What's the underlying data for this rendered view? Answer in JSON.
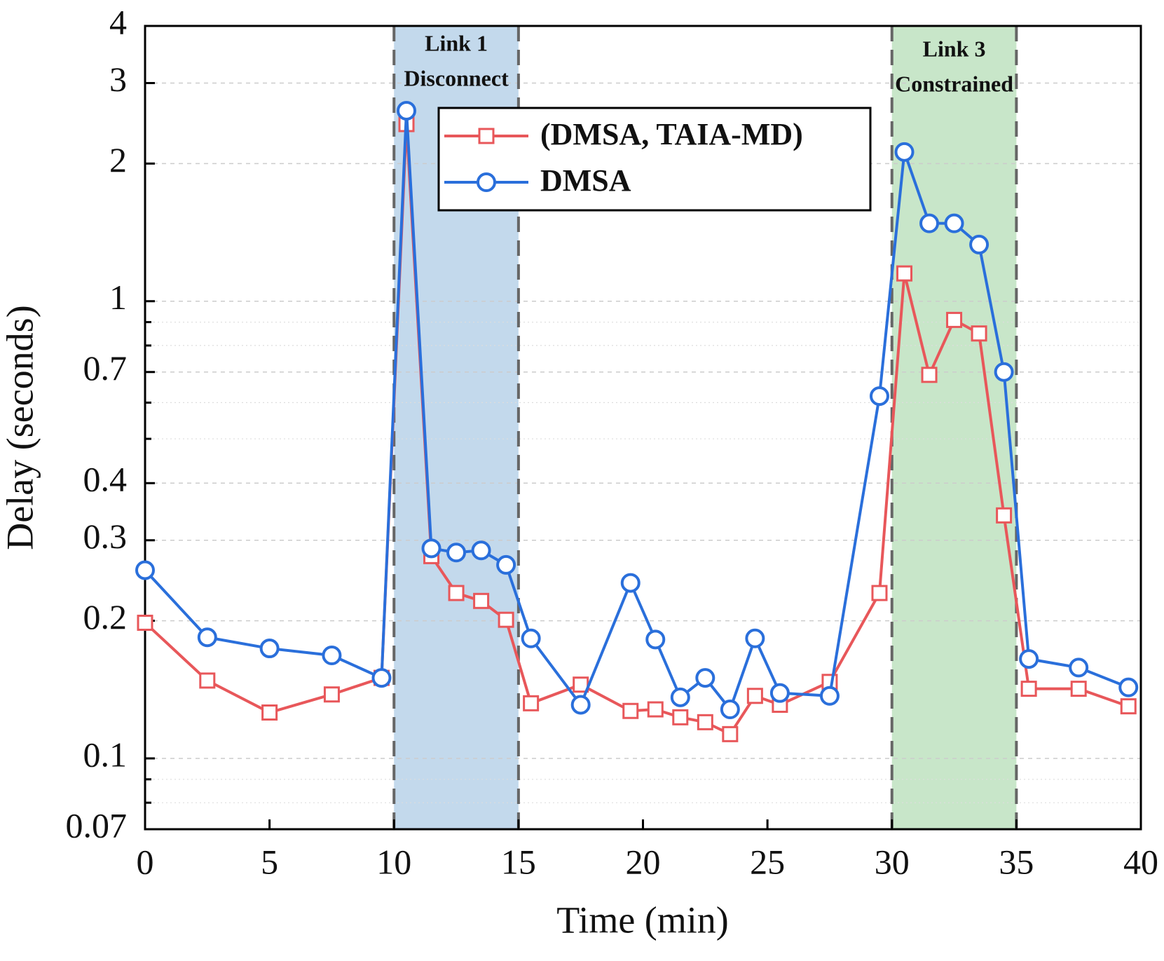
{
  "chart_data": {
    "type": "line",
    "xlabel": "Time (min)",
    "ylabel": "Delay (seconds)",
    "xlim": [
      0,
      40
    ],
    "xticks": [
      0,
      5,
      10,
      15,
      20,
      25,
      30,
      35,
      40
    ],
    "ylim": [
      0.07,
      4
    ],
    "yscale": "log",
    "yticks": [
      0.07,
      0.1,
      0.2,
      0.3,
      0.4,
      0.7,
      1,
      2,
      3,
      4
    ],
    "yminorticks": [
      0.08,
      0.09,
      0.5,
      0.6,
      0.8,
      0.9
    ],
    "grid": true,
    "legend": "upper center",
    "regions": [
      {
        "x": [
          10,
          15
        ],
        "color": "#c3d9ec",
        "label": [
          "Link 1",
          "Disconnect"
        ]
      },
      {
        "x": [
          30,
          35
        ],
        "color": "#c8e6c9",
        "label": [
          "Link 3",
          "Constrained"
        ]
      }
    ],
    "x": [
      0,
      2.5,
      5,
      7.5,
      9.5,
      10.5,
      11.5,
      12.5,
      13.5,
      14.5,
      15.5,
      17.5,
      19.5,
      20.5,
      21.5,
      22.5,
      23.5,
      24.5,
      25.5,
      27.5,
      29.5,
      30.5,
      31.5,
      32.5,
      33.5,
      34.5,
      35.5,
      37.5,
      39.5
    ],
    "series": [
      {
        "name": "(DMSA, TAIA-MD)",
        "color": "#e8575a",
        "marker": "square",
        "values": [
          0.198,
          0.148,
          0.126,
          0.138,
          0.15,
          2.44,
          0.277,
          0.23,
          0.221,
          0.201,
          0.132,
          0.145,
          0.127,
          0.128,
          0.123,
          0.12,
          0.113,
          0.137,
          0.131,
          0.147,
          0.23,
          1.15,
          0.69,
          0.91,
          0.85,
          0.34,
          0.142,
          0.142,
          0.13
        ]
      },
      {
        "name": "DMSA",
        "color": "#2a6fdb",
        "marker": "circle",
        "values": [
          0.258,
          0.184,
          0.174,
          0.168,
          0.15,
          2.61,
          0.288,
          0.282,
          0.285,
          0.265,
          0.183,
          0.131,
          0.242,
          0.182,
          0.136,
          0.15,
          0.128,
          0.183,
          0.139,
          0.137,
          0.62,
          2.12,
          1.48,
          1.48,
          1.33,
          0.7,
          0.165,
          0.158,
          0.143
        ]
      }
    ]
  }
}
